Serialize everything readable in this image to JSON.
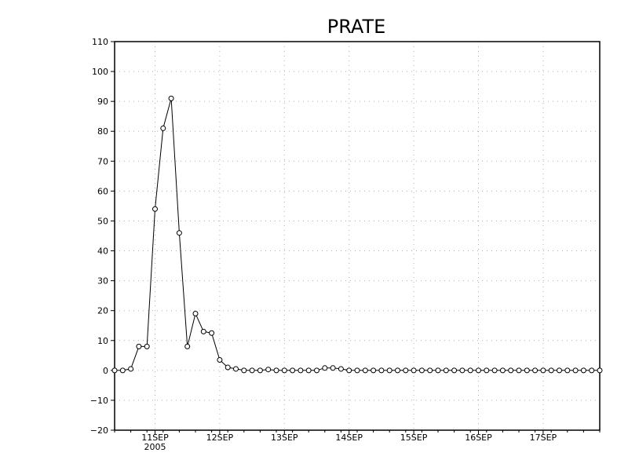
{
  "chart_data": {
    "type": "line",
    "title": "PRATE",
    "xlabel": "",
    "ylabel": "",
    "ylim": [
      -20,
      110
    ],
    "y_ticks": [
      -20,
      -10,
      0,
      10,
      20,
      30,
      40,
      50,
      60,
      70,
      80,
      90,
      100,
      110
    ],
    "y_tick_labels": [
      "−20",
      "−10",
      "0",
      "10",
      "20",
      "30",
      "40",
      "50",
      "60",
      "70",
      "80",
      "90",
      "100",
      "110"
    ],
    "x_range_hours": [
      -15,
      165
    ],
    "x_ticks": [
      {
        "hours": 0,
        "label": "11SEP",
        "sublabel": "2005"
      },
      {
        "hours": 24,
        "label": "12SEP",
        "sublabel": ""
      },
      {
        "hours": 48,
        "label": "13SEP",
        "sublabel": ""
      },
      {
        "hours": 72,
        "label": "14SEP",
        "sublabel": ""
      },
      {
        "hours": 96,
        "label": "15SEP",
        "sublabel": ""
      },
      {
        "hours": 120,
        "label": "16SEP",
        "sublabel": ""
      },
      {
        "hours": 144,
        "label": "17SEP",
        "sublabel": ""
      }
    ],
    "grid": true,
    "x_step_hours": 3,
    "x_start_hours": -15,
    "series": [
      {
        "values": [
          0,
          0,
          0.5,
          8,
          8,
          54,
          81,
          91,
          46,
          8,
          19,
          13,
          12.5,
          3.5,
          1,
          0.5,
          0,
          0,
          0,
          0.3,
          0,
          0,
          0,
          0,
          0,
          0,
          0.8,
          0.8,
          0.5,
          0,
          0,
          0,
          0,
          0,
          0,
          0,
          0,
          0,
          0,
          0,
          0,
          0,
          0,
          0,
          0,
          0,
          0,
          0,
          0,
          0,
          0,
          0,
          0,
          0,
          0,
          0,
          0,
          0,
          0,
          0,
          0
        ],
        "color": "#000000"
      }
    ]
  }
}
